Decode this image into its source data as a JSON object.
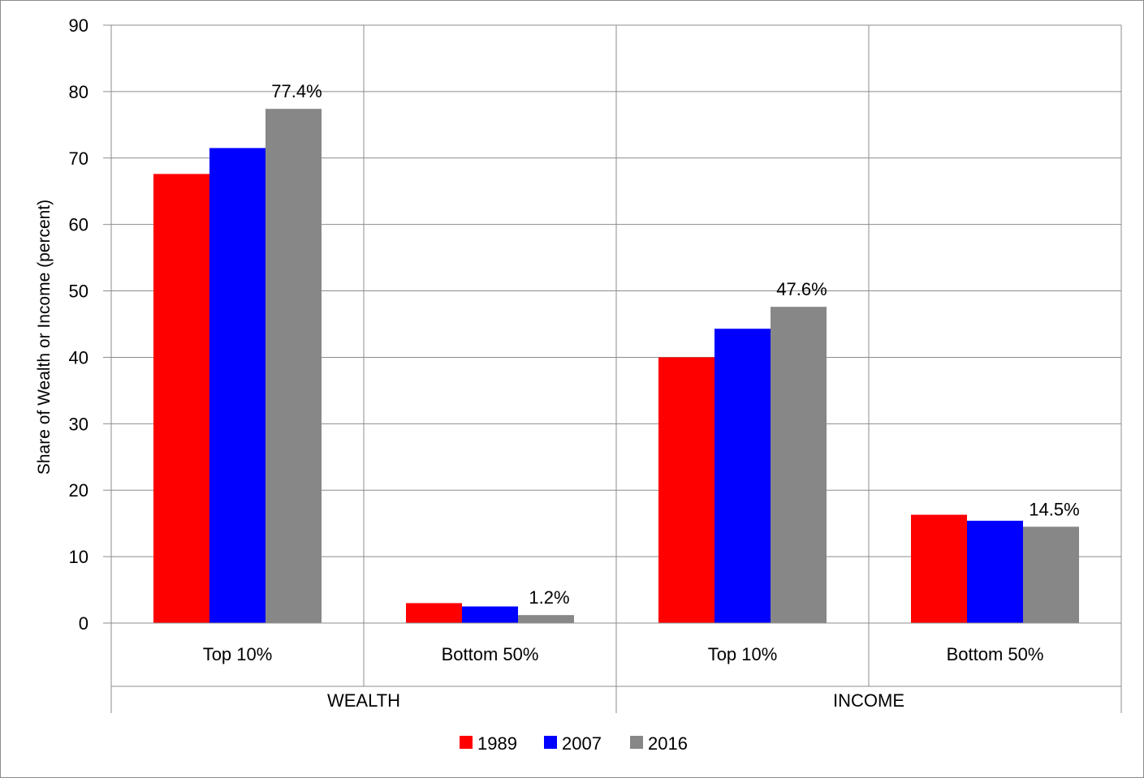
{
  "chart_data": {
    "type": "bar",
    "ylabel": "Share of Wealth or Income (percent)",
    "ylim": [
      0,
      90
    ],
    "yticks": [
      0,
      10,
      20,
      30,
      40,
      50,
      60,
      70,
      80,
      90
    ],
    "grid": true,
    "legend_position": "bottom",
    "groups": [
      {
        "label": "WEALTH",
        "categories": [
          "Top 10%",
          "Bottom 50%"
        ]
      },
      {
        "label": "INCOME",
        "categories": [
          "Top 10%",
          "Bottom 50%"
        ]
      }
    ],
    "categories": [
      "Top 10%",
      "Bottom 50%",
      "Top 10%",
      "Bottom 50%"
    ],
    "series": [
      {
        "name": "1989",
        "color": "#ff0000",
        "values": [
          67.6,
          3.0,
          40.0,
          16.3
        ]
      },
      {
        "name": "2007",
        "color": "#0000ff",
        "values": [
          71.5,
          2.5,
          44.3,
          15.4
        ]
      },
      {
        "name": "2016",
        "color": "#878787",
        "values": [
          77.4,
          1.2,
          47.6,
          14.5
        ]
      }
    ],
    "data_labels": [
      "77.4%",
      "1.2%",
      "47.6%",
      "14.5%"
    ]
  }
}
